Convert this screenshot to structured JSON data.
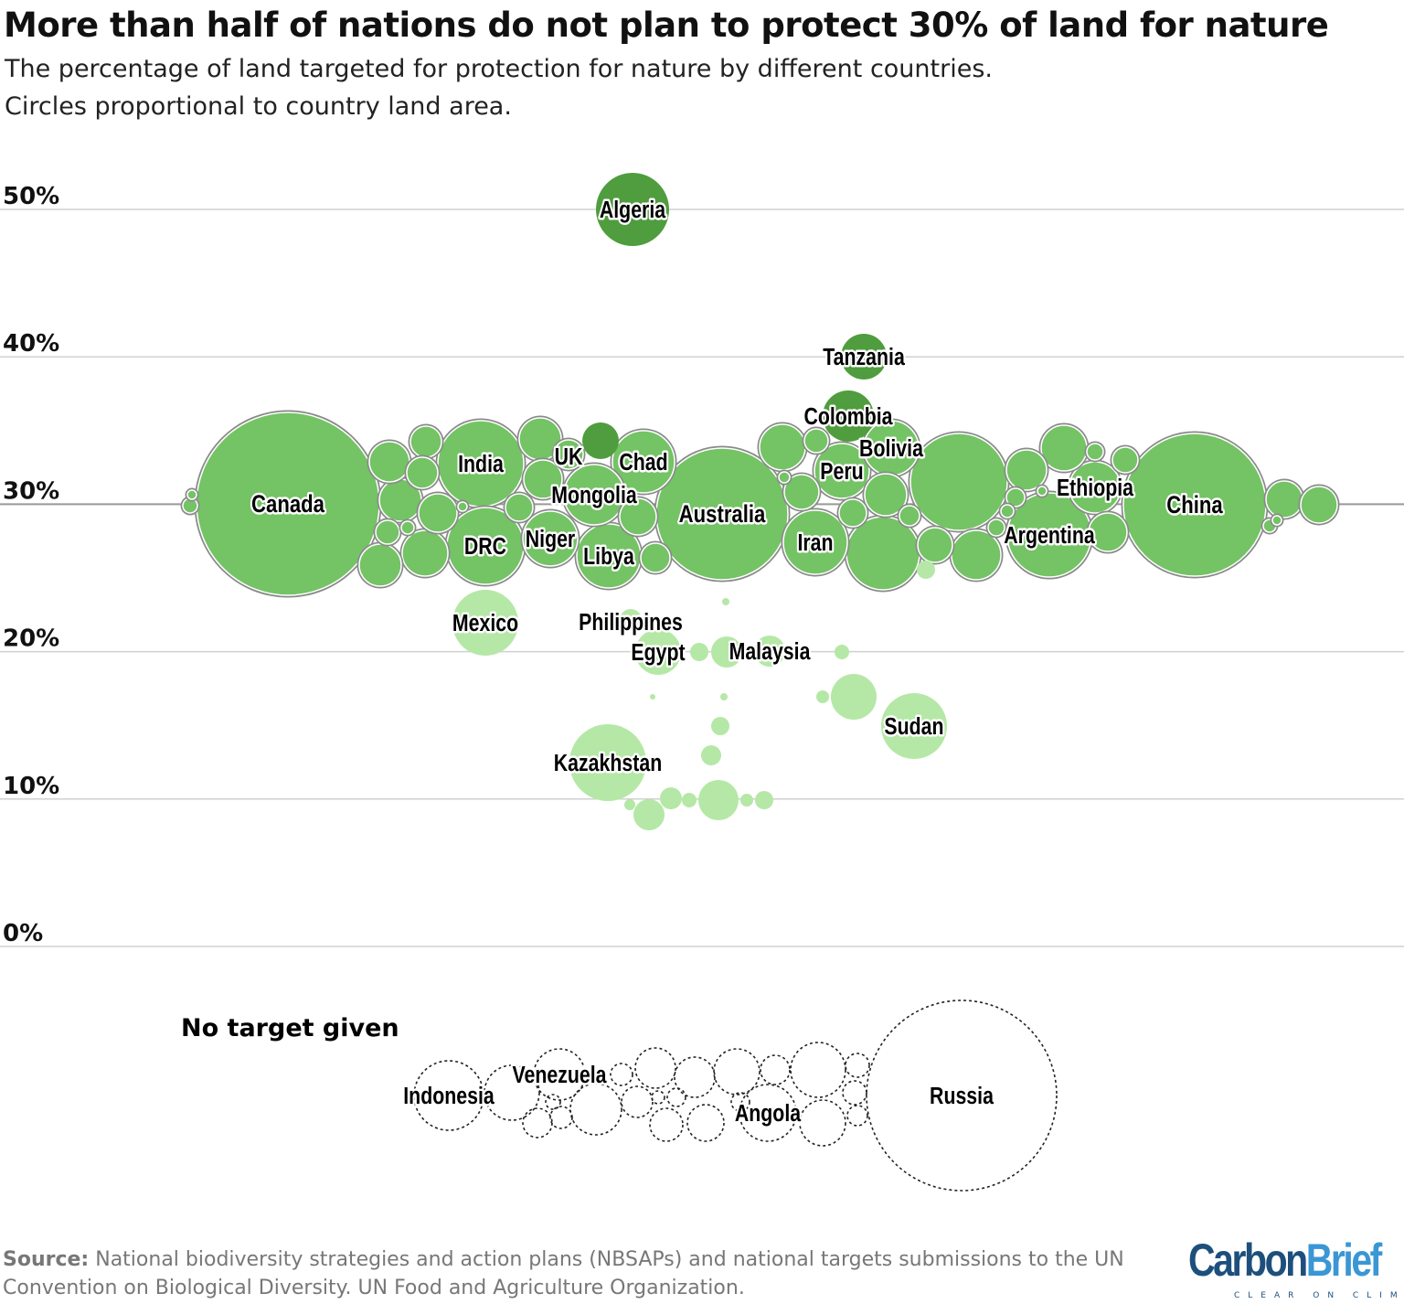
{
  "header": {
    "title": "More than half of nations do not plan to protect 30% of land for nature",
    "subtitle_line1": "The percentage of land targeted for protection for nature by different countries.",
    "subtitle_line2": "Circles proportional to country land area."
  },
  "chart_data": {
    "type": "scatter",
    "subtype": "beeswarm",
    "ylabel": "",
    "ylim": [
      0,
      50
    ],
    "y_ticks": [
      "0%",
      "10%",
      "20%",
      "30%",
      "40%",
      "50%"
    ],
    "grid": true,
    "size_encoding": "country land area",
    "colors": {
      "above_30": "#4f9d3e",
      "at_30": "#74c365",
      "below_30": "#b5e8a6",
      "no_target_stroke": "#222222"
    },
    "countries": [
      {
        "name": "Algeria",
        "target": 50
      },
      {
        "name": "Tanzania",
        "target": 40
      },
      {
        "name": "Colombia",
        "target": 36
      },
      {
        "name": "Canada",
        "target": 30
      },
      {
        "name": "India",
        "target": 30
      },
      {
        "name": "UK",
        "target": 30
      },
      {
        "name": "Chad",
        "target": 30
      },
      {
        "name": "Mongolia",
        "target": 30
      },
      {
        "name": "DRC",
        "target": 30
      },
      {
        "name": "Niger",
        "target": 30
      },
      {
        "name": "Libya",
        "target": 30
      },
      {
        "name": "Australia",
        "target": 30
      },
      {
        "name": "Iran",
        "target": 30
      },
      {
        "name": "Peru",
        "target": 30
      },
      {
        "name": "Bolivia",
        "target": 30
      },
      {
        "name": "Ethiopia",
        "target": 30
      },
      {
        "name": "Argentina",
        "target": 30
      },
      {
        "name": "China",
        "target": 30
      },
      {
        "name": "Mexico",
        "target": 22
      },
      {
        "name": "Philippines",
        "target": 22
      },
      {
        "name": "Egypt",
        "target": 20
      },
      {
        "name": "Malaysia",
        "target": 20
      },
      {
        "name": "Sudan",
        "target": 15
      },
      {
        "name": "Kazakhstan",
        "target": 12.5
      }
    ],
    "no_target": {
      "label": "No target given",
      "countries": [
        {
          "name": "Indonesia"
        },
        {
          "name": "Venezuela"
        },
        {
          "name": "Angola"
        },
        {
          "name": "Russia"
        }
      ]
    }
  },
  "footer": {
    "source_label": "Source:",
    "source_text": "National biodiversity strategies and action plans (NBSAPs) and national targets submissions to the UN Convention on Biological Diversity. UN Food and Agriculture Organization.",
    "logo_part1": "Carbon",
    "logo_part2": "Brief",
    "logo_tagline": "CLEAR ON CLIMATE"
  }
}
